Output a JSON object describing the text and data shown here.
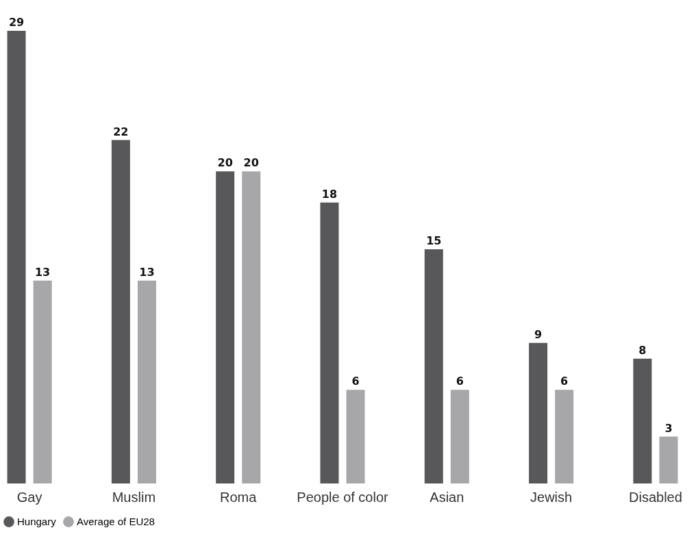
{
  "chart_data": {
    "type": "bar",
    "categories": [
      "Gay",
      "Muslim",
      "Roma",
      "People of color",
      "Asian",
      "Jewish",
      "Disabled"
    ],
    "series": [
      {
        "name": "Hungary",
        "color": "#58585a",
        "values": [
          29,
          22,
          20,
          18,
          15,
          9,
          8
        ]
      },
      {
        "name": "Average of EU28",
        "color": "#a7a7aa",
        "values": [
          13,
          13,
          20,
          6,
          6,
          6,
          3
        ]
      }
    ],
    "data_labels": true,
    "legend": "bottom left",
    "grid": false
  }
}
